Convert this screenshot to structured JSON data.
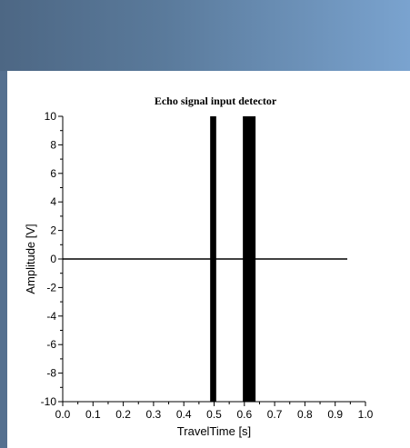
{
  "window": {
    "header_color_start": "#4d6784",
    "header_color_end": "#7aa3cf"
  },
  "chart_data": {
    "type": "line",
    "title": "Echo signal input detector",
    "xlabel": "TravelTime [s]",
    "ylabel": "Amplitude [V]",
    "xlim": [
      0.0,
      1.0
    ],
    "ylim": [
      -10,
      10
    ],
    "x_ticks": [
      "0.0",
      "0.1",
      "0.2",
      "0.3",
      "0.4",
      "0.5",
      "0.6",
      "0.7",
      "0.8",
      "0.9",
      "1.0"
    ],
    "y_ticks": [
      "10",
      "8",
      "6",
      "4",
      "2",
      "0",
      "-2",
      "-4",
      "-6",
      "-8",
      "-10"
    ],
    "grid": false,
    "series": [
      {
        "color": "#000000",
        "baseline": {
          "x": [
            0.0,
            0.94
          ],
          "y": [
            0,
            0
          ]
        },
        "pulses": [
          {
            "x_start": 0.487,
            "x_end": 0.507,
            "y_min": -10,
            "y_max": 10
          },
          {
            "x_start": 0.595,
            "x_end": 0.637,
            "y_min": -10,
            "y_max": 10
          }
        ]
      }
    ]
  }
}
